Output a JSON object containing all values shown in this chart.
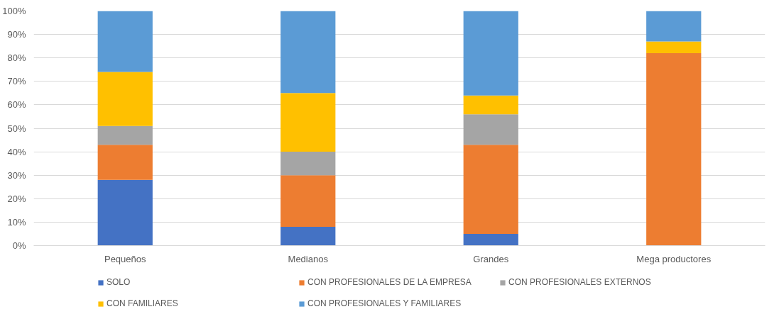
{
  "chart_data": {
    "type": "bar",
    "stacked": true,
    "categories": [
      "Pequeños",
      "Medianos",
      "Grandes",
      "Mega productores"
    ],
    "series": [
      {
        "name": "SOLO",
        "color": "#4472c4",
        "values": [
          28,
          8,
          5,
          0
        ]
      },
      {
        "name": "CON PROFESIONALES DE LA EMPRESA",
        "color": "#ed7d31",
        "values": [
          15,
          22,
          38,
          82
        ]
      },
      {
        "name": "CON PROFESIONALES EXTERNOS",
        "color": "#a5a5a5",
        "values": [
          8,
          10,
          13,
          0
        ]
      },
      {
        "name": "CON FAMILIARES",
        "color": "#ffc000",
        "values": [
          23,
          25,
          8,
          5
        ]
      },
      {
        "name": "CON PROFESIONALES Y FAMILIARES",
        "color": "#5b9bd5",
        "values": [
          26,
          35,
          36,
          13
        ]
      }
    ],
    "ylim": [
      0,
      100
    ],
    "yticks": [
      {
        "value": 0,
        "label": "0%"
      },
      {
        "value": 10,
        "label": "10%"
      },
      {
        "value": 20,
        "label": "20%"
      },
      {
        "value": 30,
        "label": "30%"
      },
      {
        "value": 40,
        "label": "40%"
      },
      {
        "value": 50,
        "label": "50%"
      },
      {
        "value": 60,
        "label": "60%"
      },
      {
        "value": 70,
        "label": "70%"
      },
      {
        "value": 80,
        "label": "80%"
      },
      {
        "value": 90,
        "label": "90%"
      },
      {
        "value": 100,
        "label": "100%"
      }
    ],
    "grid": "y",
    "legend": "bottom"
  }
}
